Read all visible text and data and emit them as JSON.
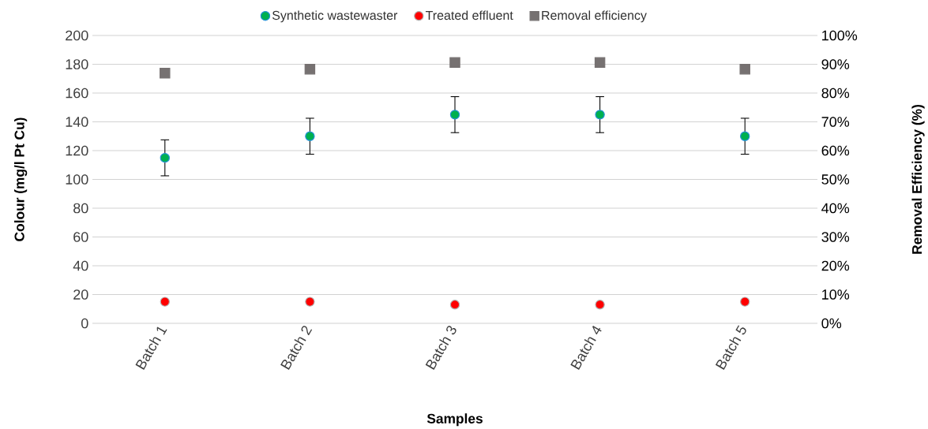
{
  "chart_data": {
    "type": "scatter",
    "categories": [
      "Batch 1",
      "Batch 2",
      "Batch 3",
      "Batch 4",
      "Batch 5"
    ],
    "xlabel": "Samples",
    "ylabel": "Colour (mg/l Pt Cu)",
    "y2label": "Removal Efficiency (%)",
    "ylim": [
      0,
      200
    ],
    "yticks": [
      0,
      20,
      40,
      60,
      80,
      100,
      120,
      140,
      160,
      180,
      200
    ],
    "y2lim": [
      0,
      100
    ],
    "y2ticks": [
      {
        "value": 0,
        "label": "0%"
      },
      {
        "value": 10,
        "label": "10%"
      },
      {
        "value": 20,
        "label": "20%"
      },
      {
        "value": 30,
        "label": "30%"
      },
      {
        "value": 40,
        "label": "40%"
      },
      {
        "value": 50,
        "label": "50%"
      },
      {
        "value": 60,
        "label": "60%"
      },
      {
        "value": 70,
        "label": "70%"
      },
      {
        "value": 80,
        "label": "80%"
      },
      {
        "value": 90,
        "label": "90%"
      },
      {
        "value": 100,
        "label": "100%"
      }
    ],
    "grid": "y",
    "legend": "top",
    "series": [
      {
        "name": "Synthetic wastewaster",
        "color": "#00b050",
        "marker": "circle",
        "values": [
          115,
          130,
          145,
          145,
          130
        ],
        "errors": [
          12.5,
          12.5,
          12.5,
          12.5,
          12.5
        ]
      },
      {
        "name": "Treated effluent",
        "color": "#ff0000",
        "marker": "circle",
        "values": [
          15,
          15,
          13,
          13,
          15
        ]
      },
      {
        "name": "Removal efficiency",
        "color": "#767171",
        "marker": "square",
        "axis": "y2",
        "values": [
          86.9,
          88.3,
          90.6,
          90.6,
          88.3
        ]
      }
    ]
  }
}
